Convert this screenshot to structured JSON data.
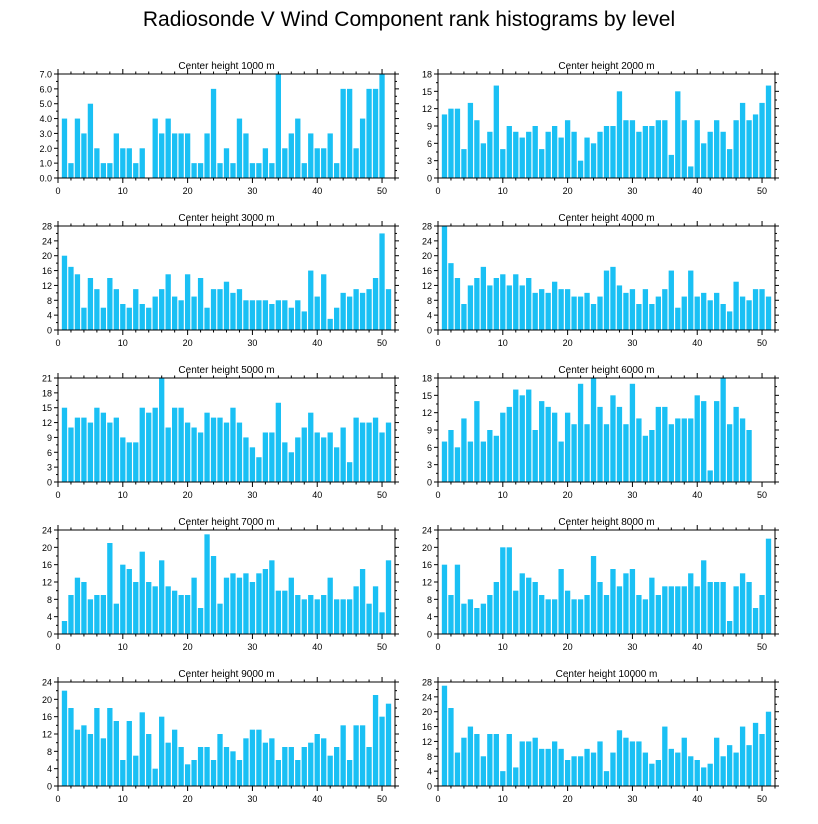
{
  "title": "Radiosonde V Wind Component rank histograms by level",
  "bar_color": "#1ac0f4",
  "chart_data": [
    {
      "type": "bar",
      "title": "Center height 1000 m",
      "ylim": [
        0,
        7
      ],
      "yticks": [
        0,
        1,
        2,
        3,
        4,
        5,
        6,
        7
      ],
      "ytick_labels": [
        "0.0",
        "1.0",
        "2.0",
        "3.0",
        "4.0",
        "5.0",
        "6.0",
        "7.0"
      ],
      "xlim": [
        0,
        52
      ],
      "xticks": [
        0,
        10,
        20,
        30,
        40,
        50
      ],
      "x": [
        1,
        2,
        3,
        4,
        5,
        6,
        7,
        8,
        9,
        10,
        11,
        12,
        13,
        14,
        15,
        16,
        17,
        18,
        19,
        20,
        21,
        22,
        23,
        24,
        25,
        26,
        27,
        28,
        29,
        30,
        31,
        32,
        33,
        34,
        35,
        36,
        37,
        38,
        39,
        40,
        41,
        42,
        43,
        44,
        45,
        46,
        47,
        48,
        49,
        50,
        51
      ],
      "values": [
        4,
        1,
        4,
        3,
        5,
        2,
        1,
        1,
        3,
        2,
        2,
        1,
        2,
        0,
        4,
        3,
        4,
        3,
        3,
        3,
        1,
        1,
        3,
        6,
        1,
        2,
        1,
        4,
        3,
        1,
        1,
        2,
        1,
        7,
        2,
        3,
        4,
        1,
        3,
        2,
        2,
        3,
        1,
        6,
        6,
        2,
        4,
        6,
        6,
        7,
        0
      ]
    },
    {
      "type": "bar",
      "title": "Center height 2000 m",
      "ylim": [
        0,
        18
      ],
      "yticks": [
        0,
        3,
        6,
        9,
        12,
        15,
        18
      ],
      "ytick_labels": [
        "0",
        "3",
        "6",
        "9",
        "12",
        "15",
        "18"
      ],
      "xlim": [
        0,
        52
      ],
      "xticks": [
        0,
        10,
        20,
        30,
        40,
        50
      ],
      "x": [
        1,
        2,
        3,
        4,
        5,
        6,
        7,
        8,
        9,
        10,
        11,
        12,
        13,
        14,
        15,
        16,
        17,
        18,
        19,
        20,
        21,
        22,
        23,
        24,
        25,
        26,
        27,
        28,
        29,
        30,
        31,
        32,
        33,
        34,
        35,
        36,
        37,
        38,
        39,
        40,
        41,
        42,
        43,
        44,
        45,
        46,
        47,
        48,
        49,
        50,
        51
      ],
      "values": [
        11,
        12,
        12,
        5,
        13,
        10,
        6,
        8,
        16,
        5,
        9,
        8,
        7,
        8,
        9,
        5,
        8,
        9,
        7,
        10,
        8,
        3,
        7,
        6,
        8,
        9,
        9,
        15,
        10,
        10,
        8,
        9,
        9,
        10,
        10,
        4,
        15,
        10,
        2,
        10,
        6,
        8,
        10,
        8,
        5,
        10,
        13,
        10,
        11,
        13,
        16
      ]
    },
    {
      "type": "bar",
      "title": "Center height 3000 m",
      "ylim": [
        0,
        28
      ],
      "yticks": [
        0,
        4,
        8,
        12,
        16,
        20,
        24,
        28
      ],
      "ytick_labels": [
        "0",
        "4",
        "8",
        "12",
        "16",
        "20",
        "24",
        "28"
      ],
      "xlim": [
        0,
        52
      ],
      "xticks": [
        0,
        10,
        20,
        30,
        40,
        50
      ],
      "x": [
        1,
        2,
        3,
        4,
        5,
        6,
        7,
        8,
        9,
        10,
        11,
        12,
        13,
        14,
        15,
        16,
        17,
        18,
        19,
        20,
        21,
        22,
        23,
        24,
        25,
        26,
        27,
        28,
        29,
        30,
        31,
        32,
        33,
        34,
        35,
        36,
        37,
        38,
        39,
        40,
        41,
        42,
        43,
        44,
        45,
        46,
        47,
        48,
        49,
        50,
        51
      ],
      "values": [
        20,
        17,
        15,
        6,
        14,
        11,
        6,
        14,
        11,
        7,
        6,
        11,
        7,
        6,
        9,
        11,
        15,
        9,
        8,
        15,
        9,
        14,
        6,
        11,
        11,
        13,
        10,
        11,
        8,
        8,
        8,
        8,
        7,
        8,
        8,
        6,
        8,
        5,
        16,
        9,
        15,
        3,
        6,
        10,
        9,
        11,
        10,
        11,
        14,
        26,
        11
      ]
    },
    {
      "type": "bar",
      "title": "Center height 4000 m",
      "ylim": [
        0,
        28
      ],
      "yticks": [
        0,
        4,
        8,
        12,
        16,
        20,
        24,
        28
      ],
      "ytick_labels": [
        "0",
        "4",
        "8",
        "12",
        "16",
        "20",
        "24",
        "28"
      ],
      "xlim": [
        0,
        52
      ],
      "xticks": [
        0,
        10,
        20,
        30,
        40,
        50
      ],
      "x": [
        1,
        2,
        3,
        4,
        5,
        6,
        7,
        8,
        9,
        10,
        11,
        12,
        13,
        14,
        15,
        16,
        17,
        18,
        19,
        20,
        21,
        22,
        23,
        24,
        25,
        26,
        27,
        28,
        29,
        30,
        31,
        32,
        33,
        34,
        35,
        36,
        37,
        38,
        39,
        40,
        41,
        42,
        43,
        44,
        45,
        46,
        47,
        48,
        49,
        50,
        51
      ],
      "values": [
        28,
        18,
        14,
        7,
        12,
        14,
        17,
        12,
        14,
        15,
        12,
        15,
        12,
        14,
        10,
        11,
        10,
        13,
        11,
        11,
        9,
        9,
        10,
        7,
        9,
        16,
        17,
        12,
        10,
        11,
        7,
        11,
        7,
        9,
        11,
        16,
        6,
        9,
        16,
        9,
        10,
        8,
        10,
        7,
        5,
        13,
        9,
        8,
        11,
        11,
        9
      ]
    },
    {
      "type": "bar",
      "title": "Center height 5000 m",
      "ylim": [
        0,
        21
      ],
      "yticks": [
        0,
        3,
        6,
        9,
        12,
        15,
        18,
        21
      ],
      "ytick_labels": [
        "0",
        "3",
        "6",
        "9",
        "12",
        "15",
        "18",
        "21"
      ],
      "xlim": [
        0,
        52
      ],
      "xticks": [
        0,
        10,
        20,
        30,
        40,
        50
      ],
      "x": [
        1,
        2,
        3,
        4,
        5,
        6,
        7,
        8,
        9,
        10,
        11,
        12,
        13,
        14,
        15,
        16,
        17,
        18,
        19,
        20,
        21,
        22,
        23,
        24,
        25,
        26,
        27,
        28,
        29,
        30,
        31,
        32,
        33,
        34,
        35,
        36,
        37,
        38,
        39,
        40,
        41,
        42,
        43,
        44,
        45,
        46,
        47,
        48,
        49,
        50,
        51
      ],
      "values": [
        15,
        11,
        13,
        13,
        12,
        15,
        14,
        12,
        13,
        9,
        8,
        8,
        15,
        14,
        15,
        21,
        11,
        15,
        15,
        12,
        11,
        10,
        14,
        13,
        13,
        12,
        15,
        12,
        9,
        7,
        5,
        10,
        10,
        16,
        8,
        6,
        9,
        11,
        14,
        10,
        9,
        10,
        7,
        11,
        4,
        13,
        12,
        12,
        13,
        10,
        12
      ]
    },
    {
      "type": "bar",
      "title": "Center height 6000 m",
      "ylim": [
        0,
        18
      ],
      "yticks": [
        0,
        3,
        6,
        9,
        12,
        15,
        18
      ],
      "ytick_labels": [
        "0",
        "3",
        "6",
        "9",
        "12",
        "15",
        "18"
      ],
      "xlim": [
        0,
        52
      ],
      "xticks": [
        0,
        10,
        20,
        30,
        40,
        50
      ],
      "x": [
        1,
        2,
        3,
        4,
        5,
        6,
        7,
        8,
        9,
        10,
        11,
        12,
        13,
        14,
        15,
        16,
        17,
        18,
        19,
        20,
        21,
        22,
        23,
        24,
        25,
        26,
        27,
        28,
        29,
        30,
        31,
        32,
        33,
        34,
        35,
        36,
        37,
        38,
        39,
        40,
        41,
        42,
        43,
        44,
        45,
        46,
        47,
        48,
        49,
        50,
        51
      ],
      "values": [
        7,
        9,
        6,
        11,
        7,
        14,
        7,
        9,
        8,
        12,
        13,
        16,
        15,
        16,
        9,
        14,
        13,
        12,
        7,
        12,
        10,
        17,
        10,
        18,
        13,
        10,
        15,
        13,
        10,
        17,
        11,
        8,
        9,
        13,
        13,
        10,
        11,
        11,
        11,
        15,
        14,
        2,
        14,
        18,
        10,
        13,
        11,
        9,
        0,
        0,
        0
      ]
    },
    {
      "type": "bar",
      "title": "Center height 7000 m",
      "ylim": [
        0,
        24
      ],
      "yticks": [
        0,
        4,
        8,
        12,
        16,
        20,
        24
      ],
      "ytick_labels": [
        "0",
        "4",
        "8",
        "12",
        "16",
        "20",
        "24"
      ],
      "xlim": [
        0,
        52
      ],
      "xticks": [
        0,
        10,
        20,
        30,
        40,
        50
      ],
      "x": [
        1,
        2,
        3,
        4,
        5,
        6,
        7,
        8,
        9,
        10,
        11,
        12,
        13,
        14,
        15,
        16,
        17,
        18,
        19,
        20,
        21,
        22,
        23,
        24,
        25,
        26,
        27,
        28,
        29,
        30,
        31,
        32,
        33,
        34,
        35,
        36,
        37,
        38,
        39,
        40,
        41,
        42,
        43,
        44,
        45,
        46,
        47,
        48,
        49,
        50,
        51
      ],
      "values": [
        3,
        9,
        13,
        12,
        8,
        9,
        9,
        21,
        7,
        16,
        15,
        12,
        19,
        12,
        11,
        17,
        11,
        10,
        9,
        9,
        13,
        6,
        23,
        18,
        7,
        13,
        14,
        13,
        14,
        12,
        14,
        15,
        17,
        10,
        10,
        13,
        9,
        8,
        9,
        8,
        9,
        13,
        8,
        8,
        8,
        11,
        15,
        7,
        11,
        5,
        17
      ]
    },
    {
      "type": "bar",
      "title": "Center height 8000 m",
      "ylim": [
        0,
        24
      ],
      "yticks": [
        0,
        4,
        8,
        12,
        16,
        20,
        24
      ],
      "ytick_labels": [
        "0",
        "4",
        "8",
        "12",
        "16",
        "20",
        "24"
      ],
      "xlim": [
        0,
        52
      ],
      "xticks": [
        0,
        10,
        20,
        30,
        40,
        50
      ],
      "x": [
        1,
        2,
        3,
        4,
        5,
        6,
        7,
        8,
        9,
        10,
        11,
        12,
        13,
        14,
        15,
        16,
        17,
        18,
        19,
        20,
        21,
        22,
        23,
        24,
        25,
        26,
        27,
        28,
        29,
        30,
        31,
        32,
        33,
        34,
        35,
        36,
        37,
        38,
        39,
        40,
        41,
        42,
        43,
        44,
        45,
        46,
        47,
        48,
        49,
        50,
        51
      ],
      "values": [
        16,
        9,
        16,
        7,
        8,
        6,
        7,
        9,
        12,
        20,
        20,
        10,
        14,
        13,
        12,
        9,
        8,
        8,
        15,
        10,
        8,
        8,
        9,
        18,
        12,
        9,
        15,
        11,
        14,
        15,
        9,
        8,
        13,
        9,
        11,
        11,
        11,
        11,
        14,
        11,
        17,
        12,
        12,
        12,
        3,
        11,
        14,
        12,
        6,
        9,
        22
      ]
    },
    {
      "type": "bar",
      "title": "Center height 9000 m",
      "ylim": [
        0,
        24
      ],
      "yticks": [
        0,
        4,
        8,
        12,
        16,
        20,
        24
      ],
      "ytick_labels": [
        "0",
        "4",
        "8",
        "12",
        "16",
        "20",
        "24"
      ],
      "xlim": [
        0,
        52
      ],
      "xticks": [
        0,
        10,
        20,
        30,
        40,
        50
      ],
      "x": [
        1,
        2,
        3,
        4,
        5,
        6,
        7,
        8,
        9,
        10,
        11,
        12,
        13,
        14,
        15,
        16,
        17,
        18,
        19,
        20,
        21,
        22,
        23,
        24,
        25,
        26,
        27,
        28,
        29,
        30,
        31,
        32,
        33,
        34,
        35,
        36,
        37,
        38,
        39,
        40,
        41,
        42,
        43,
        44,
        45,
        46,
        47,
        48,
        49,
        50,
        51
      ],
      "values": [
        22,
        18,
        13,
        14,
        12,
        18,
        11,
        18,
        15,
        6,
        15,
        7,
        17,
        12,
        4,
        16,
        10,
        13,
        9,
        5,
        6,
        9,
        9,
        6,
        12,
        9,
        8,
        6,
        11,
        13,
        13,
        10,
        11,
        6,
        9,
        9,
        6,
        9,
        10,
        12,
        11,
        7,
        9,
        14,
        6,
        14,
        14,
        9,
        21,
        16,
        19
      ]
    },
    {
      "type": "bar",
      "title": "Center height 10000 m",
      "ylim": [
        0,
        28
      ],
      "yticks": [
        0,
        4,
        8,
        12,
        16,
        20,
        24,
        28
      ],
      "ytick_labels": [
        "0",
        "4",
        "8",
        "12",
        "16",
        "20",
        "24",
        "28"
      ],
      "xlim": [
        0,
        52
      ],
      "xticks": [
        0,
        10,
        20,
        30,
        40,
        50
      ],
      "x": [
        1,
        2,
        3,
        4,
        5,
        6,
        7,
        8,
        9,
        10,
        11,
        12,
        13,
        14,
        15,
        16,
        17,
        18,
        19,
        20,
        21,
        22,
        23,
        24,
        25,
        26,
        27,
        28,
        29,
        30,
        31,
        32,
        33,
        34,
        35,
        36,
        37,
        38,
        39,
        40,
        41,
        42,
        43,
        44,
        45,
        46,
        47,
        48,
        49,
        50,
        51
      ],
      "values": [
        27,
        21,
        9,
        13,
        16,
        14,
        8,
        14,
        14,
        4,
        14,
        5,
        12,
        12,
        13,
        10,
        10,
        12,
        10,
        7,
        8,
        8,
        10,
        9,
        12,
        4,
        9,
        15,
        13,
        12,
        12,
        9,
        6,
        7,
        16,
        10,
        9,
        13,
        8,
        7,
        5,
        6,
        13,
        8,
        11,
        9,
        16,
        11,
        17,
        14,
        20
      ]
    }
  ]
}
